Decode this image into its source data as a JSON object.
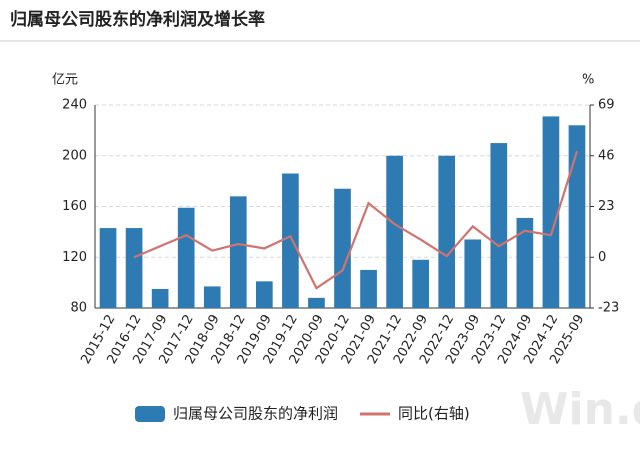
{
  "chart_data": {
    "type": "bar-line",
    "title": "归属母公司股东的净利润及增长率",
    "y_unit": "亿元",
    "y2_unit": "%",
    "watermark": "Win.d",
    "categories": [
      "2015-12",
      "2016-12",
      "2017-09",
      "2017-12",
      "2018-09",
      "2018-12",
      "2019-09",
      "2019-12",
      "2020-09",
      "2020-12",
      "2021-09",
      "2021-12",
      "2022-09",
      "2022-12",
      "2023-09",
      "2023-12",
      "2024-09",
      "2024-12",
      "2025-09"
    ],
    "series": [
      {
        "name": "归属母公司股东的净利润",
        "type": "bar",
        "color": "#2e7bb4",
        "values": [
          143,
          143,
          95,
          159,
          97,
          168,
          101,
          186,
          88,
          174,
          110,
          200,
          118,
          200,
          134,
          210,
          151,
          231,
          224
        ]
      },
      {
        "name": "同比(右轴)",
        "type": "line",
        "color": "#d0736f",
        "axis": "y2",
        "values": [
          null,
          0,
          5,
          10,
          3,
          6,
          4,
          9.5,
          -14,
          -6,
          24.5,
          15,
          8,
          0.5,
          14,
          5,
          12,
          10,
          48
        ]
      }
    ],
    "ylim": [
      80,
      240
    ],
    "yticks": [
      80,
      120,
      160,
      200,
      240
    ],
    "y2lim": [
      -23,
      69
    ],
    "y2ticks": [
      -23,
      0,
      23,
      46,
      69
    ],
    "grid": true
  }
}
